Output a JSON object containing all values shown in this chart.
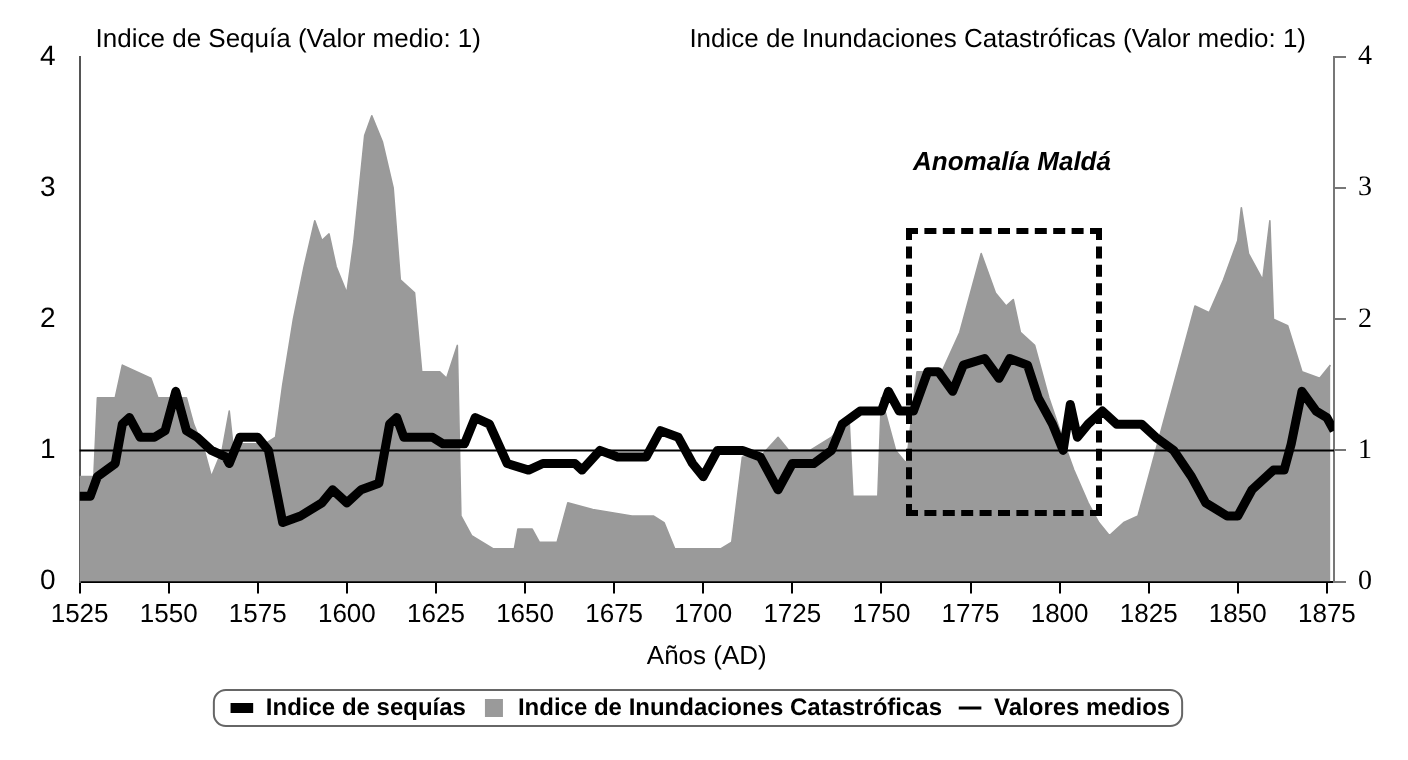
{
  "chart_data": {
    "type": "line",
    "xlabel": "Años (AD)",
    "ylabel": "Indice de Sequía (Valor medio: 1)",
    "y2label": "Indice de Inundaciones Catastróficas (Valor medio: 1)",
    "xlim": [
      1525,
      1877
    ],
    "xticks": [
      1525,
      1550,
      1575,
      1600,
      1625,
      1650,
      1675,
      1700,
      1725,
      1750,
      1775,
      1800,
      1825,
      1850,
      1875
    ],
    "ylim": [
      0,
      4
    ],
    "yticks": [
      0,
      1,
      2,
      3,
      4
    ],
    "y2lim": [
      0,
      4
    ],
    "y2ticks": [
      0,
      1,
      2,
      3,
      4
    ],
    "legend": "bottom",
    "series": [
      {
        "name": "Indice de sequías",
        "type": "line",
        "color": "#000000",
        "x": [
          1525,
          1528,
          1530,
          1535,
          1537,
          1539,
          1542,
          1546,
          1549,
          1552,
          1555,
          1558,
          1562,
          1566,
          1567,
          1570,
          1575,
          1578,
          1582,
          1587,
          1593,
          1596,
          1600,
          1604,
          1609,
          1612,
          1614,
          1616,
          1624,
          1627,
          1633,
          1636,
          1640,
          1645,
          1651,
          1655,
          1664,
          1666,
          1671,
          1676,
          1684,
          1688,
          1693,
          1697,
          1700,
          1704,
          1711,
          1716,
          1721,
          1725,
          1731,
          1736,
          1739,
          1744,
          1750,
          1752,
          1755,
          1759,
          1763,
          1766,
          1770,
          1773,
          1779,
          1783,
          1786,
          1791,
          1794,
          1798,
          1801,
          1803,
          1805,
          1808,
          1812,
          1816,
          1823,
          1827,
          1832,
          1837,
          1841,
          1847,
          1850,
          1854,
          1860,
          1863,
          1865,
          1868,
          1872,
          1875,
          1877
        ],
        "values": [
          0.65,
          0.65,
          0.8,
          0.9,
          1.2,
          1.25,
          1.1,
          1.1,
          1.15,
          1.45,
          1.15,
          1.1,
          1.0,
          0.95,
          0.9,
          1.1,
          1.1,
          1.0,
          0.45,
          0.5,
          0.6,
          0.7,
          0.6,
          0.7,
          0.75,
          1.2,
          1.25,
          1.1,
          1.1,
          1.05,
          1.05,
          1.25,
          1.2,
          0.9,
          0.85,
          0.9,
          0.9,
          0.85,
          1.0,
          0.95,
          0.95,
          1.15,
          1.1,
          0.9,
          0.8,
          1.0,
          1.0,
          0.95,
          0.7,
          0.9,
          0.9,
          1.0,
          1.2,
          1.3,
          1.3,
          1.45,
          1.3,
          1.3,
          1.6,
          1.6,
          1.45,
          1.65,
          1.7,
          1.55,
          1.7,
          1.65,
          1.4,
          1.2,
          1.0,
          1.35,
          1.1,
          1.2,
          1.3,
          1.2,
          1.2,
          1.1,
          1.0,
          0.8,
          0.6,
          0.5,
          0.5,
          0.7,
          0.85,
          0.85,
          1.05,
          1.45,
          1.3,
          1.25,
          1.15
        ]
      },
      {
        "name": "Indice de Inundaciones Catastróficas",
        "type": "area",
        "axis": "y2",
        "color": "#9a9a9a",
        "x": [
          1525,
          1529,
          1530,
          1535,
          1537,
          1545,
          1547,
          1555,
          1557,
          1560,
          1562,
          1565,
          1567,
          1568,
          1577,
          1580,
          1582,
          1585,
          1588,
          1591,
          1593,
          1595,
          1597,
          1600,
          1602,
          1605,
          1607,
          1610,
          1613,
          1615,
          1619,
          1621,
          1626,
          1628,
          1631,
          1632,
          1635,
          1638,
          1641,
          1647,
          1648,
          1652,
          1654,
          1659,
          1662,
          1669,
          1680,
          1686,
          1689,
          1692,
          1705,
          1708,
          1711,
          1716,
          1721,
          1724,
          1730,
          1736,
          1739,
          1741,
          1742,
          1749,
          1750,
          1754,
          1757,
          1760,
          1767,
          1772,
          1775,
          1778,
          1782,
          1785,
          1787,
          1789,
          1793,
          1797,
          1802,
          1804,
          1808,
          1811,
          1814,
          1818,
          1822,
          1826,
          1830,
          1835,
          1838,
          1842,
          1846,
          1850,
          1851,
          1853,
          1857,
          1859,
          1860,
          1864,
          1868,
          1873,
          1876
        ],
        "values": [
          0.8,
          0.8,
          1.4,
          1.4,
          1.65,
          1.55,
          1.4,
          1.4,
          1.2,
          1.0,
          0.8,
          1.0,
          1.3,
          1.05,
          1.05,
          1.1,
          1.5,
          2.0,
          2.4,
          2.75,
          2.6,
          2.65,
          2.4,
          2.2,
          2.6,
          3.4,
          3.55,
          3.35,
          3.0,
          2.3,
          2.2,
          1.6,
          1.6,
          1.55,
          1.8,
          0.5,
          0.35,
          0.3,
          0.25,
          0.25,
          0.4,
          0.4,
          0.3,
          0.3,
          0.6,
          0.55,
          0.5,
          0.5,
          0.45,
          0.25,
          0.25,
          0.3,
          0.95,
          0.95,
          1.1,
          1.0,
          1.0,
          1.1,
          1.2,
          1.2,
          0.65,
          0.65,
          1.4,
          1.0,
          0.9,
          1.6,
          1.6,
          1.9,
          2.2,
          2.5,
          2.2,
          2.1,
          2.15,
          1.9,
          1.8,
          1.4,
          1.0,
          0.85,
          0.6,
          0.45,
          0.35,
          0.45,
          0.5,
          0.9,
          1.3,
          1.8,
          2.1,
          2.05,
          2.3,
          2.6,
          2.85,
          2.5,
          2.3,
          2.75,
          2.0,
          1.95,
          1.6,
          1.55,
          1.65
        ]
      }
    ],
    "ref_lines": [
      {
        "axis": "y",
        "value": 1,
        "label": "Valores medios",
        "color": "#000000"
      }
    ],
    "annotations": [
      "Anomalía Maldá"
    ]
  }
}
